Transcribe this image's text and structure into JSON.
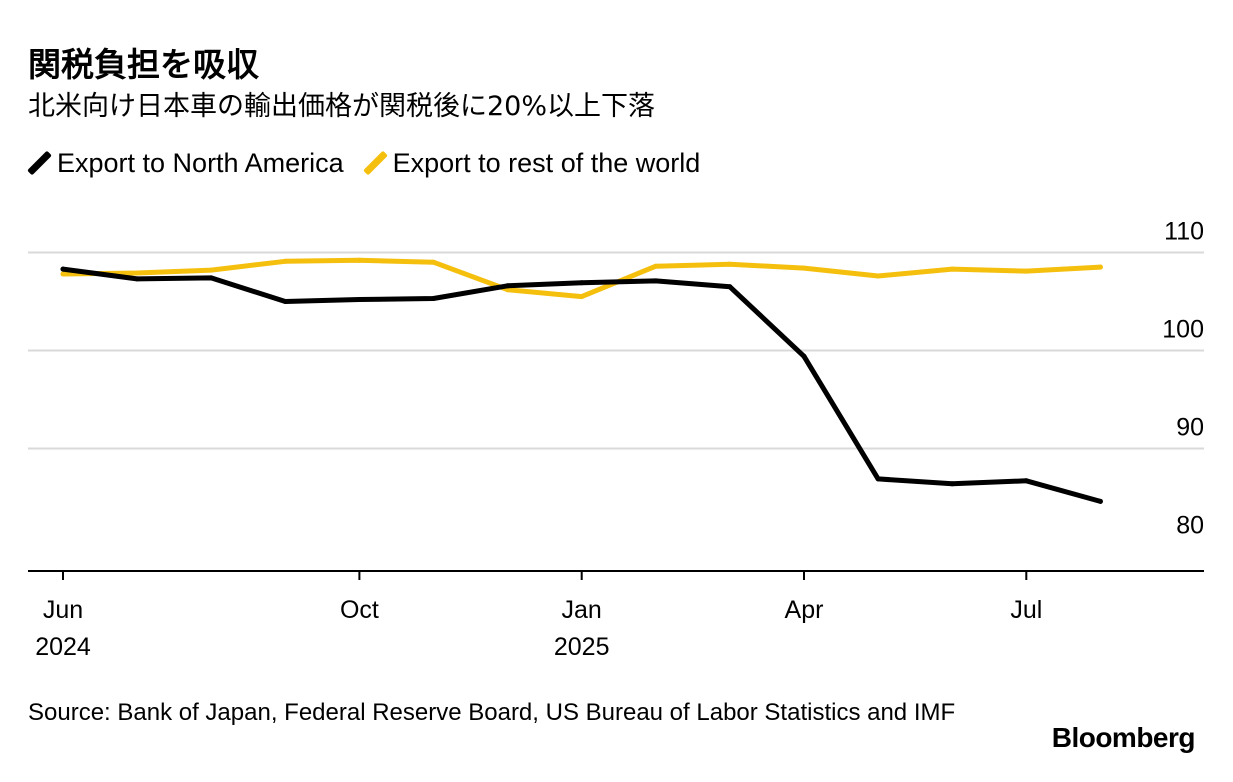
{
  "title": "関税負担を吸収",
  "subtitle": "北米向け日本車の輸出価格が関税後に20%以上下落",
  "legend": [
    {
      "label": "Export to North America",
      "color": "#000000"
    },
    {
      "label": "Export to rest of the world",
      "color": "#f5bf0e"
    }
  ],
  "chart_data": {
    "type": "line",
    "x": [
      "2024-06",
      "2024-07",
      "2024-08",
      "2024-09",
      "2024-10",
      "2024-11",
      "2024-12",
      "2025-01",
      "2025-02",
      "2025-03",
      "2025-04",
      "2025-05",
      "2025-06",
      "2025-07",
      "2025-08"
    ],
    "series": [
      {
        "name": "Export to North America",
        "color": "#000000",
        "values": [
          108.3,
          107.3,
          107.4,
          105.0,
          105.2,
          105.3,
          106.6,
          106.9,
          107.1,
          106.5,
          99.4,
          86.9,
          86.4,
          86.7,
          84.6
        ]
      },
      {
        "name": "Export to rest of the world",
        "color": "#f5bf0e",
        "values": [
          107.8,
          107.9,
          108.2,
          109.1,
          109.2,
          109.0,
          106.2,
          105.5,
          108.6,
          108.8,
          108.4,
          107.6,
          108.3,
          108.1,
          108.5
        ]
      }
    ],
    "y_ticks": [
      80,
      90,
      100,
      110
    ],
    "ylim": [
      77.5,
      112.8
    ],
    "x_ticks": [
      {
        "month": "2024-06",
        "label": "Jun",
        "year": "2024"
      },
      {
        "month": "2024-10",
        "label": "Oct",
        "year": ""
      },
      {
        "month": "2025-01",
        "label": "Jan",
        "year": "2025"
      },
      {
        "month": "2025-04",
        "label": "Apr",
        "year": ""
      },
      {
        "month": "2025-07",
        "label": "Jul",
        "year": ""
      }
    ],
    "grid": true,
    "title": "関税負担を吸収",
    "subtitle": "北米向け日本車の輸出価格が関税後に20%以上下落"
  },
  "source": "Source: Bank of Japan, Federal Reserve Board, US Bureau of Labor Statistics and IMF",
  "brand": "Bloomberg"
}
